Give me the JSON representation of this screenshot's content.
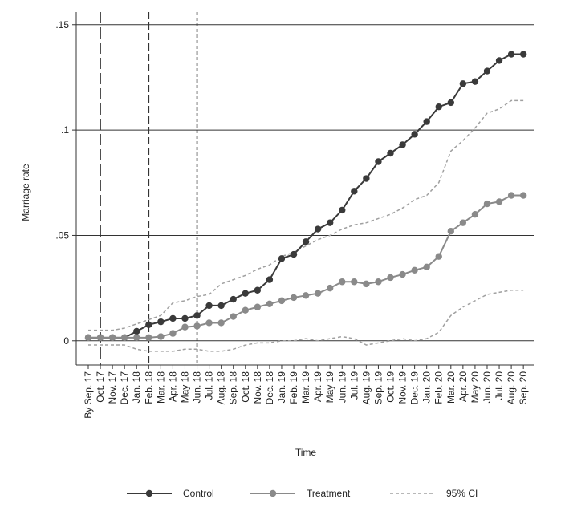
{
  "chart_data": {
    "type": "line",
    "y_label": "Marriage rate",
    "x_label": "Time",
    "categories": [
      "By Sep. 17",
      "Oct. 17",
      "Nov. 17",
      "Dec. 17",
      "Jan. 18",
      "Feb. 18",
      "Mar. 18",
      "Apr. 18",
      "May 18",
      "Jun. 18",
      "Jul. 18",
      "Aug. 18",
      "Sep. 18",
      "Oct. 18",
      "Nov. 18",
      "Dec. 18",
      "Jan. 19",
      "Feb. 19",
      "Mar. 19",
      "Apr. 19",
      "May 19",
      "Jun. 19",
      "Jul. 19",
      "Aug. 19",
      "Sep. 19",
      "Oct. 19",
      "Nov. 19",
      "Dec. 19",
      "Jan. 20",
      "Feb. 20",
      "Mar. 20",
      "Apr. 20",
      "May 20",
      "Jun. 20",
      "Jul. 20",
      "Aug. 20",
      "Sep. 20"
    ],
    "series": [
      {
        "name": "Control",
        "color": "#3a3a3a",
        "values": [
          0.0015,
          0.0015,
          0.0015,
          0.0015,
          0.0045,
          0.0076,
          0.009,
          0.0106,
          0.0106,
          0.012,
          0.0167,
          0.0167,
          0.0197,
          0.0225,
          0.024,
          0.029,
          0.039,
          0.041,
          0.047,
          0.053,
          0.056,
          0.062,
          0.071,
          0.077,
          0.085,
          0.089,
          0.093,
          0.098,
          0.104,
          0.111,
          0.113,
          0.122,
          0.123,
          0.128,
          0.133,
          0.136,
          0.136
        ]
      },
      {
        "name": "Treatment",
        "color": "#8a8a8a",
        "values": [
          0.0015,
          0.0015,
          0.0015,
          0.0015,
          0.0015,
          0.0015,
          0.002,
          0.0035,
          0.0065,
          0.007,
          0.0085,
          0.0085,
          0.0115,
          0.0145,
          0.016,
          0.0175,
          0.019,
          0.0205,
          0.0215,
          0.0225,
          0.025,
          0.028,
          0.028,
          0.027,
          0.028,
          0.03,
          0.0315,
          0.0335,
          0.035,
          0.04,
          0.052,
          0.056,
          0.06,
          0.065,
          0.066,
          0.069,
          0.069
        ]
      }
    ],
    "ci": {
      "name": "95% CI",
      "color": "#a0a0a0",
      "upper": [
        0.005,
        0.005,
        0.005,
        0.006,
        0.008,
        0.01,
        0.012,
        0.018,
        0.019,
        0.021,
        0.022,
        0.027,
        0.029,
        0.031,
        0.034,
        0.036,
        0.04,
        0.042,
        0.045,
        0.048,
        0.05,
        0.053,
        0.055,
        0.056,
        0.058,
        0.06,
        0.063,
        0.067,
        0.069,
        0.075,
        0.09,
        0.095,
        0.101,
        0.108,
        0.11,
        0.114,
        0.114
      ],
      "lower": [
        -0.002,
        -0.002,
        -0.002,
        -0.002,
        -0.004,
        -0.005,
        -0.005,
        -0.005,
        -0.004,
        -0.004,
        -0.005,
        -0.005,
        -0.004,
        -0.002,
        -0.001,
        -0.001,
        0,
        0,
        0.001,
        0,
        0.001,
        0.002,
        0.001,
        -0.002,
        -0.001,
        0,
        0.001,
        0,
        0.001,
        0.004,
        0.012,
        0.016,
        0.019,
        0.022,
        0.023,
        0.024,
        0.024
      ]
    },
    "vlines": [
      {
        "x": "Oct. 17",
        "dash": "14,5"
      },
      {
        "x": "Feb. 18",
        "dash": "9,4"
      },
      {
        "x": "Jun. 18",
        "dash": "4,3"
      }
    ],
    "ylim": [
      -0.0115,
      0.156
    ],
    "yticks": [
      0,
      {
        "value": 0.05,
        "label": ".05"
      },
      {
        "value": 0.1,
        "label": ".1"
      },
      {
        "value": 0.15,
        "label": ".15"
      }
    ],
    "grid": true
  }
}
